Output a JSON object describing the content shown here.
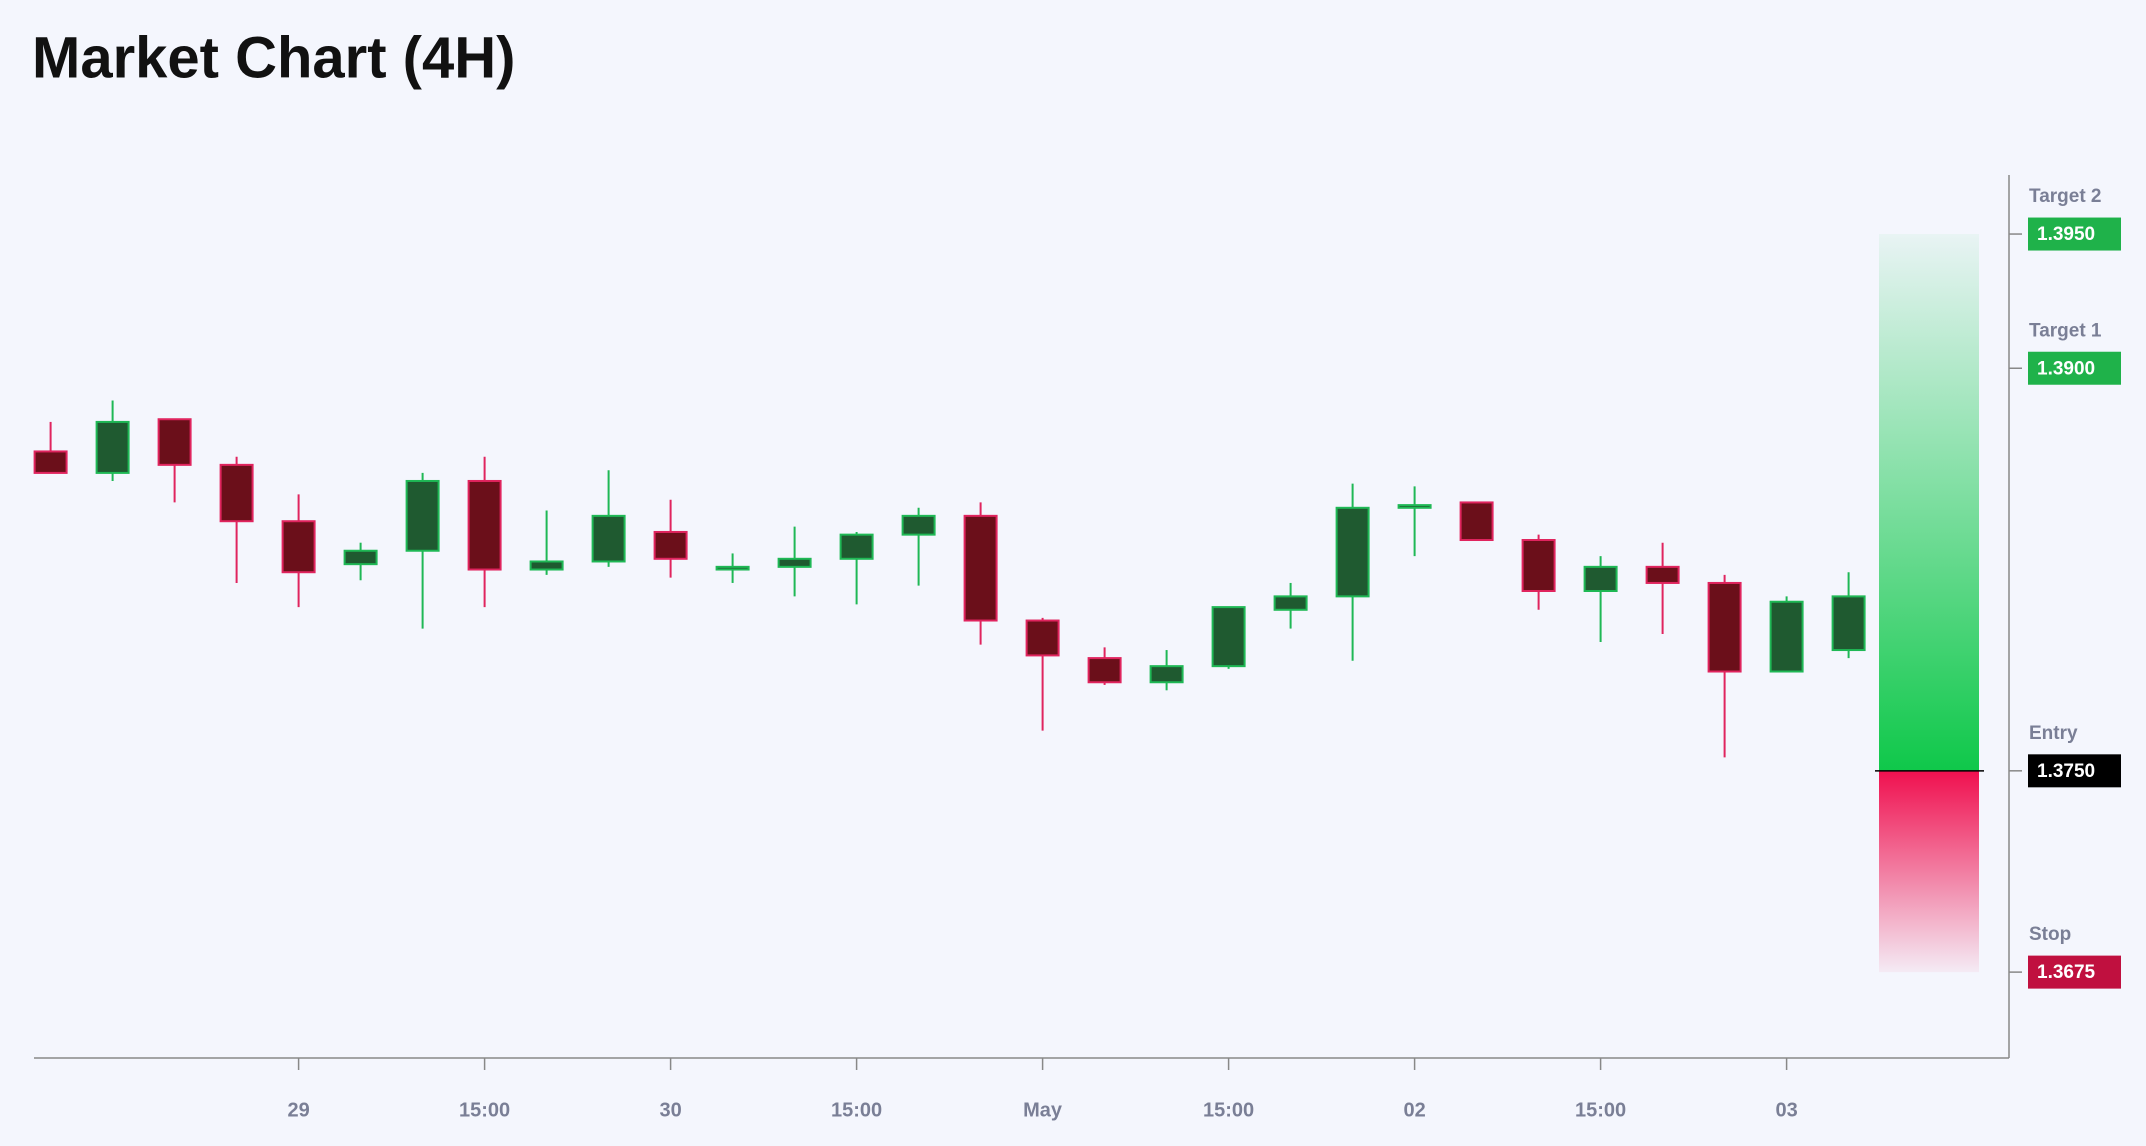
{
  "chart_data": {
    "type": "candlestick",
    "title": "Market Chart (4H)",
    "categories": [
      null,
      null,
      null,
      null,
      "29",
      null,
      null,
      "15:00",
      null,
      null,
      "30",
      null,
      null,
      "15:00",
      null,
      null,
      "May",
      null,
      null,
      "15:00",
      null,
      null,
      "02",
      null,
      null,
      "15:00",
      null,
      null,
      "03",
      null
    ],
    "open": [
      1.3869,
      1.3861,
      1.3881,
      1.3864,
      1.3843,
      1.3827,
      1.3832,
      1.3858,
      1.3825,
      1.3828,
      1.3839,
      1.3825,
      1.3826,
      1.3829,
      1.3838,
      1.3845,
      1.3806,
      1.3792,
      1.3783,
      1.3789,
      1.381,
      1.3815,
      1.3848,
      1.385,
      1.3836,
      1.3817,
      1.3826,
      1.382,
      1.3787,
      1.3795
    ],
    "high": [
      1.388,
      1.3888,
      1.3881,
      1.3867,
      1.3853,
      1.3835,
      1.3861,
      1.3867,
      1.3847,
      1.3862,
      1.3851,
      1.3831,
      1.3841,
      1.3839,
      1.3848,
      1.385,
      1.3807,
      1.3796,
      1.3795,
      1.3811,
      1.382,
      1.3857,
      1.3856,
      1.385,
      1.3838,
      1.383,
      1.3835,
      1.3823,
      1.3815,
      1.3824
    ],
    "low": [
      1.3861,
      1.3858,
      1.385,
      1.382,
      1.3811,
      1.3821,
      1.3803,
      1.3811,
      1.3823,
      1.3826,
      1.3822,
      1.382,
      1.3815,
      1.3812,
      1.3819,
      1.3797,
      1.3765,
      1.3782,
      1.378,
      1.3788,
      1.3803,
      1.3791,
      1.383,
      1.3836,
      1.381,
      1.3798,
      1.3801,
      1.3755,
      1.3787,
      1.3792
    ],
    "close": [
      1.3861,
      1.388,
      1.3864,
      1.3843,
      1.3824,
      1.3832,
      1.3858,
      1.3825,
      1.3828,
      1.3845,
      1.3829,
      1.3826,
      1.3829,
      1.3838,
      1.3845,
      1.3806,
      1.3793,
      1.3783,
      1.3789,
      1.3811,
      1.3815,
      1.3848,
      1.3849,
      1.3836,
      1.3817,
      1.3826,
      1.382,
      1.3787,
      1.3813,
      1.3815
    ],
    "up_color": "#1f5a30",
    "up_edge": "#1fb855",
    "down_color": "#6b0f1a",
    "down_edge": "#e0245e",
    "ylim": [
      1.3643,
      1.3972
    ],
    "levels": [
      {
        "name": "Target 2",
        "value": 1.395,
        "label": "1.3950",
        "color": "#1fb24a"
      },
      {
        "name": "Target 1",
        "value": 1.39,
        "label": "1.3900",
        "color": "#1fb24a"
      },
      {
        "name": "Entry",
        "value": 1.375,
        "label": "1.3750",
        "color": "#000000"
      },
      {
        "name": "Stop",
        "value": 1.3675,
        "label": "1.3675",
        "color": "#c0103f"
      }
    ]
  }
}
